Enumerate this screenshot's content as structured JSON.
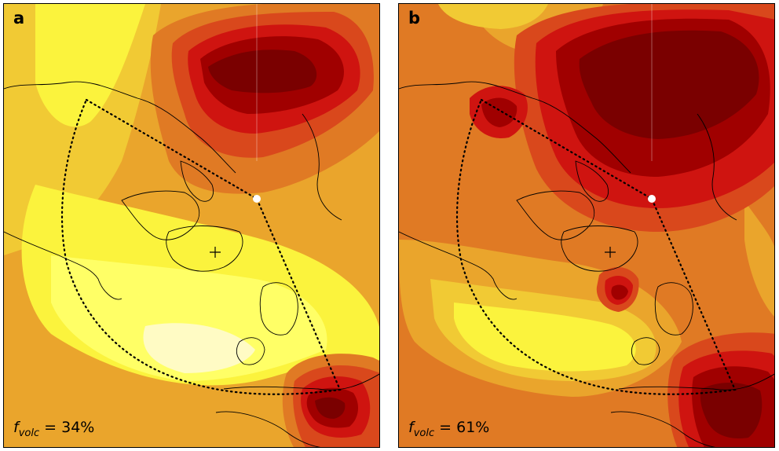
{
  "panels": [
    {
      "letter": "a",
      "fvolc": {
        "symbol": "f",
        "subscript": "volc",
        "equals": " = ",
        "value": "34%"
      }
    },
    {
      "letter": "b",
      "fvolc": {
        "symbol": "f",
        "subscript": "volc",
        "equals": " = ",
        "value": "61%"
      }
    }
  ],
  "colors": {
    "palest": "#fffbc4",
    "pale": "#ffff66",
    "yellow": "#fbf33d",
    "gold": "#f1ca34",
    "amber": "#eaa52c",
    "orange": "#e07a24",
    "redorange": "#d9481c",
    "red": "#cf1410",
    "darkred": "#a00000",
    "maroon": "#7a0000",
    "coastline": "#000000",
    "marker": "#ffffff"
  }
}
